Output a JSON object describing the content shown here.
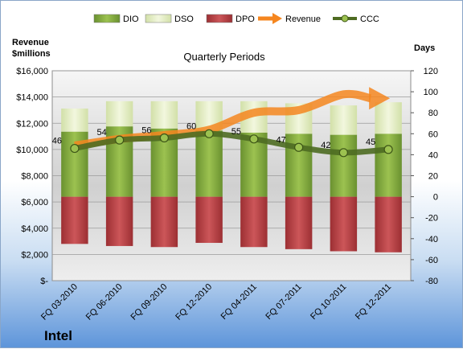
{
  "company": "Intel",
  "chart_data": {
    "type": "bar",
    "subtitle": "Quarterly Periods",
    "y_left_label_line1": "Revenue",
    "y_left_label_line2": "$millions",
    "y_right_label": "Days",
    "categories": [
      "FQ 03-2010",
      "FQ 06-2010",
      "FQ 09-2010",
      "FQ 12-2010",
      "FQ 04-2011",
      "FQ 07-2011",
      "FQ 10-2011",
      "FQ 12-2011"
    ],
    "left_axis": {
      "min": 0,
      "max": 16000,
      "ticks": [
        "$-",
        "$2,000",
        "$4,000",
        "$6,000",
        "$8,000",
        "$10,000",
        "$12,000",
        "$14,000",
        "$16,000"
      ]
    },
    "right_axis": {
      "min": -80,
      "max": 120,
      "ticks": [
        "-80",
        "-60",
        "-40",
        "-20",
        "0",
        "20",
        "40",
        "60",
        "80",
        "100",
        "120"
      ]
    },
    "series": [
      {
        "name": "DIO",
        "kind": "stacked-bar",
        "color": "#7ea63a",
        "values": [
          62,
          67,
          65,
          63,
          61,
          60,
          59,
          60
        ]
      },
      {
        "name": "DSO",
        "kind": "stacked-bar",
        "color": "#e2ecc2",
        "values": [
          22,
          24,
          26,
          28,
          30,
          29,
          28,
          30
        ]
      },
      {
        "name": "DPO",
        "kind": "stacked-bar",
        "color": "#b63b3e",
        "values": [
          -45,
          -47,
          -48,
          -44,
          -48,
          -50,
          -52,
          -53
        ]
      },
      {
        "name": "Revenue",
        "kind": "arrow-line",
        "color": "#f5861f",
        "axis": "left",
        "values": [
          10300,
          10800,
          11100,
          11500,
          12800,
          13000,
          14200,
          13900
        ]
      },
      {
        "name": "CCC",
        "kind": "line",
        "color": "#5a7a2a",
        "axis": "right",
        "values": [
          46,
          54,
          56,
          60,
          55,
          47,
          42,
          45
        ]
      }
    ],
    "legend_position": "top",
    "grid": "horizontal"
  }
}
